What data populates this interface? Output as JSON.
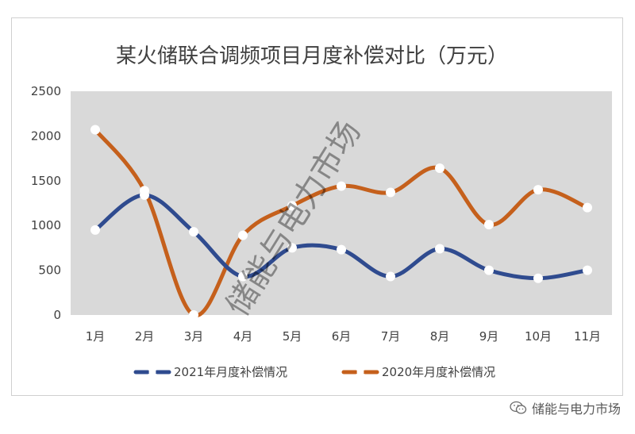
{
  "chart_data": {
    "type": "line",
    "title": "某火储联合调频项目月度补偿对比（万元）",
    "categories": [
      "1月",
      "2月",
      "3月",
      "4月",
      "5月",
      "6月",
      "7月",
      "8月",
      "9月",
      "10月",
      "11月"
    ],
    "ylim": [
      0,
      2500
    ],
    "yticks": [
      "0",
      "500",
      "1000",
      "1500",
      "2000",
      "2500"
    ],
    "grid": false,
    "legend_position": "bottom",
    "series": [
      {
        "name": "2021年月度补偿情况",
        "color": "#2f4b8f",
        "dash": true,
        "values": [
          950,
          1340,
          930,
          430,
          750,
          730,
          430,
          740,
          500,
          410,
          500
        ]
      },
      {
        "name": "2020年月度补偿情况",
        "color": "#c5601c",
        "dash": true,
        "values": [
          2070,
          1390,
          0,
          890,
          1220,
          1440,
          1370,
          1640,
          1010,
          1400,
          1200
        ]
      }
    ],
    "plot_background": "#d9d9d9",
    "watermark": "储能与电力市场"
  },
  "footer": {
    "wechat_label": "储能与电力市场"
  }
}
